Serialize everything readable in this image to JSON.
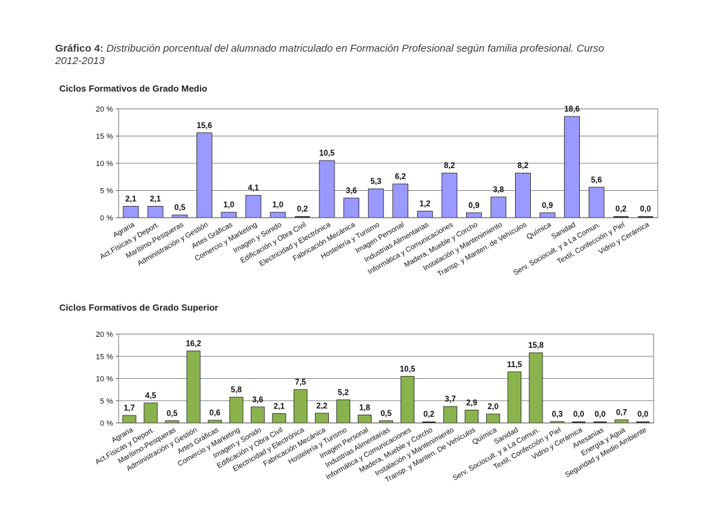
{
  "caption": {
    "label": "Gráfico 4:",
    "text": "Distribución porcentual del alumnado matriculado en Formación Profesional según familia profesional. Curso 2012-2013"
  },
  "chart_data": [
    {
      "type": "bar",
      "title": "Ciclos Formativos de Grado Medio",
      "color": "#9999ff",
      "zero_color": "#1f1f1f",
      "ylim": [
        0,
        20
      ],
      "yticks": [
        "0 %",
        "5 %",
        "10 %",
        "15 %",
        "20 %"
      ],
      "grid": true,
      "categories": [
        "Agraria",
        "Act.Físicas y Deport.",
        "Marítimo-Pesqueras",
        "Administración y Gestión",
        "Artes Gráficas",
        "Comercio y Marketing",
        "Imagen y Sonido",
        "Edificación y Obra Civil",
        "Electricidad y Electrónica",
        "Fabricación Mecánica",
        "Hostelería y Turismo",
        "Imagen Personal",
        "Industrias Alimentarias",
        "Informática y Comunicaciones",
        "Madera, Mueble y Corcho",
        "Instalación y Mantenimiento",
        "Transp. y Manten. de Vehículos",
        "Química",
        "Sanidad",
        "Serv. Sociocult. y a La Comun.",
        "Textil, Confección y Piel",
        "Vidrio y Cerámica"
      ],
      "values": [
        2.1,
        2.1,
        0.5,
        15.6,
        1.0,
        4.1,
        1.0,
        0.2,
        10.5,
        3.6,
        5.3,
        6.2,
        1.2,
        8.2,
        0.9,
        3.8,
        8.2,
        0.9,
        18.6,
        5.6,
        0.2,
        0.0
      ],
      "value_labels": [
        "2,1",
        "2,1",
        "0,5",
        "15,6",
        "1,0",
        "4,1",
        "1,0",
        "0,2",
        "10,5",
        "3,6",
        "5,3",
        "6,2",
        "1,2",
        "8,2",
        "0,9",
        "3,8",
        "8,2",
        "0,9",
        "18,6",
        "5,6",
        "0,2",
        "0,0"
      ]
    },
    {
      "type": "bar",
      "title": "Ciclos Formativos de Grado Superior",
      "color": "#8ab34e",
      "zero_color": "#1f1f1f",
      "ylim": [
        0,
        20
      ],
      "yticks": [
        "0 %",
        "5 %",
        "10 %",
        "15 %",
        "20 %"
      ],
      "grid": true,
      "categories": [
        "Agraria",
        "Act.Físicas y Deport.",
        "Marítimo-Pesqueras",
        "Administración y Gestión",
        "Artes Gráficas",
        "Comercio y Marketing",
        "Imagen y Sonido",
        "Edificación y Obra Civil",
        "Electricidad y Electrónica",
        "Fabricación Mecánica",
        "Hostelería y Turismo",
        "Imagen Personal",
        "Industrias Alimentarias",
        "Informática y Comunicaciones",
        "Madera, Mueble y Corcho",
        "Instalación y Mantenimiento",
        "Transp. y Manten. De Vehículos",
        "Química",
        "Sanidad",
        "Serv. Sociocult. y a La Comun.",
        "Textil, Confección y Piel",
        "Vidrio y Cerámica",
        "Artesanías",
        "Energía y Agua",
        "Seguridad y Medio Ambiente"
      ],
      "values": [
        1.7,
        4.5,
        0.5,
        16.2,
        0.6,
        5.8,
        3.6,
        2.1,
        7.5,
        2.2,
        5.2,
        1.8,
        0.5,
        10.5,
        0.2,
        3.7,
        2.9,
        2.0,
        11.5,
        15.8,
        0.3,
        0.0,
        0.0,
        0.7,
        0.0
      ],
      "value_labels": [
        "1,7",
        "4,5",
        "0,5",
        "16,2",
        "0,6",
        "5,8",
        "3,6",
        "2,1",
        "7,5",
        "2,2",
        "5,2",
        "1,8",
        "0,5",
        "10,5",
        "0,2",
        "3,7",
        "2,9",
        "2,0",
        "11,5",
        "15,8",
        "0,3",
        "0,0",
        "0,0",
        "0,7",
        "0,0"
      ]
    }
  ]
}
